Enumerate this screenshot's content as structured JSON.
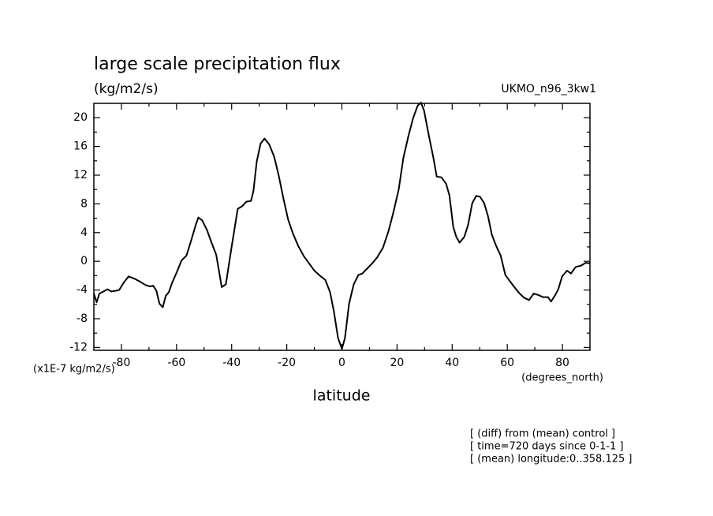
{
  "chart_data": {
    "type": "line",
    "title": "large scale precipitation flux",
    "subtitle": "(kg/m2/s)",
    "model": "UKMO_n96_3kw1",
    "y_label": "(x1E-7 kg/m2/s)",
    "x_units": "(degrees_north)",
    "x_label": "latitude",
    "annotations": [
      "[ (diff) from (mean) control ]",
      "[ time=720 days since 0-1-1 ]",
      "[ (mean) longitude:0..358.125 ]"
    ],
    "xlim": [
      -90,
      90
    ],
    "xticks": [
      -80,
      -60,
      -40,
      -20,
      0,
      20,
      40,
      60,
      80
    ],
    "ylim": [
      -12.4,
      22
    ],
    "yticks": [
      -12,
      -8,
      -4,
      0,
      4,
      8,
      12,
      16,
      20
    ],
    "color": "#000000",
    "x": [
      -90,
      -89,
      -88,
      -86.5,
      -85,
      -83.7,
      -82,
      -80.8,
      -79.4,
      -77.4,
      -75.4,
      -73.4,
      -71.3,
      -69.6,
      -68.5,
      -67.3,
      -66.2,
      -65,
      -63.9,
      -62.8,
      -61.6,
      -59.9,
      -58.2,
      -56.4,
      -54.7,
      -53,
      -52.1,
      -50.7,
      -49,
      -47.3,
      -45.6,
      -43.6,
      -42.1,
      -40.1,
      -37.8,
      -36.1,
      -34.7,
      -33,
      -32.1,
      -30.9,
      -29.5,
      -28.1,
      -26.4,
      -24.6,
      -22.9,
      -21.2,
      -19.5,
      -17.8,
      -15.8,
      -13.8,
      -11.7,
      -10,
      -8,
      -6,
      -4.3,
      -2.9,
      -1.4,
      0,
      1.1,
      2.6,
      4.3,
      6,
      7.4,
      9.2,
      11.2,
      12.9,
      14.9,
      16.9,
      18.6,
      20.6,
      22.3,
      24.1,
      25.8,
      27.5,
      28.7,
      29.8,
      31.5,
      33.2,
      34.4,
      36.1,
      37.8,
      39,
      40.4,
      41.5,
      42.7,
      44.4,
      45.8,
      47.3,
      48.7,
      50.1,
      51.6,
      53,
      54.4,
      55.9,
      57.6,
      59.3,
      61,
      62.8,
      64.5,
      66.2,
      67.9,
      69.6,
      71.3,
      73,
      74.8,
      75.9,
      77.4,
      78.5,
      79.9,
      81.7,
      83.1,
      84.8,
      86.8,
      88.5,
      90
    ],
    "values": [
      -4.5,
      -5.7,
      -4.5,
      -4.2,
      -3.9,
      -4.2,
      -4.1,
      -4,
      -3.1,
      -2.1,
      -2.4,
      -2.8,
      -3.3,
      -3.5,
      -3.4,
      -4.1,
      -5.9,
      -6.4,
      -4.8,
      -4.3,
      -3,
      -1.5,
      0.1,
      0.8,
      2.9,
      5.1,
      6.1,
      5.7,
      4.4,
      2.6,
      0.9,
      -3.6,
      -3.2,
      1.8,
      7.3,
      7.7,
      8.3,
      8.4,
      9.8,
      13.9,
      16.4,
      17.1,
      16.3,
      14.6,
      11.9,
      8.7,
      5.8,
      3.9,
      2.1,
      0.7,
      -0.4,
      -1.3,
      -2,
      -2.6,
      -4.3,
      -7,
      -10.7,
      -12.2,
      -10.7,
      -5.9,
      -3.2,
      -1.9,
      -1.7,
      -1,
      -0.2,
      0.6,
      1.9,
      4.2,
      6.7,
      10,
      14.4,
      17.4,
      19.9,
      21.7,
      22.1,
      21,
      17.6,
      14.4,
      11.8,
      11.7,
      10.8,
      9.2,
      4.8,
      3.4,
      2.6,
      3.4,
      5.1,
      8.1,
      9.1,
      9,
      8.1,
      6.3,
      3.7,
      2.2,
      0.8,
      -1.9,
      -2.8,
      -3.7,
      -4.5,
      -5.1,
      -5.4,
      -4.5,
      -4.7,
      -5,
      -5,
      -5.6,
      -4.7,
      -3.9,
      -2.1,
      -1.3,
      -1.7,
      -0.8,
      -0.6,
      -0.2,
      -0.3
    ]
  }
}
